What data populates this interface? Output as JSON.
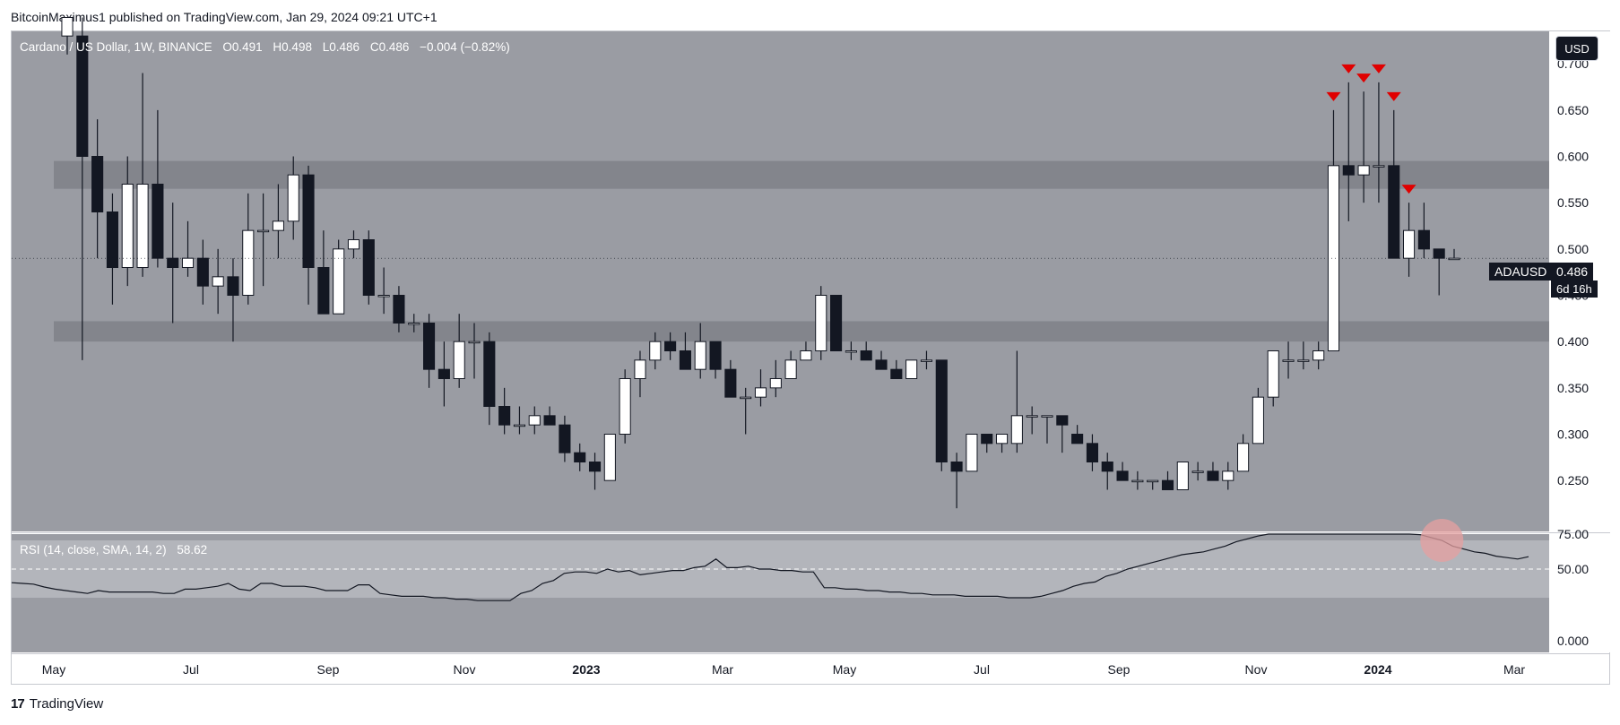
{
  "header": {
    "publisher_line": "BitcoinMaximus1 published on TradingView.com, Jan 29, 2024 09:21 UTC+1"
  },
  "legend": {
    "symbol": "Cardano / US Dollar, 1W, BINANCE",
    "open_label": "O",
    "open": "0.491",
    "high_label": "H",
    "high": "0.498",
    "low_label": "L",
    "low": "0.486",
    "close_label": "C",
    "close": "0.486",
    "change": "−0.004 (−0.82%)"
  },
  "rsi_legend": {
    "label": "RSI (14, close, SMA, 14, 2)",
    "value": "58.62"
  },
  "currency_button": "USD",
  "price_tag": {
    "symbol": "ADAUSD",
    "price": "0.486",
    "countdown": "6d 16h"
  },
  "footer_logo": {
    "mark": "17",
    "text": "TradingView"
  },
  "colors": {
    "pane_bg": "#9a9ca3",
    "rsi_bg": "#9a9ca3",
    "rsi_band": "#b3b5bb",
    "zone": "#7f8188",
    "bull": "#ffffff",
    "bear": "#131722",
    "marker": "#e00000",
    "highlight_circle": "#e5a0a0"
  },
  "chart_data": {
    "type": "candlestick",
    "title": "Cardano / US Dollar, 1W, BINANCE",
    "y_axis_ticks": [
      "0.700",
      "0.650",
      "0.600",
      "0.550",
      "0.500",
      "0.450",
      "0.400",
      "0.350",
      "0.300",
      "0.250"
    ],
    "x_axis_ticks": [
      "May",
      "Jul",
      "Sep",
      "Nov",
      "2023",
      "Mar",
      "May",
      "Jul",
      "Sep",
      "Nov",
      "2024",
      "Mar"
    ],
    "ylim": [
      0.195,
      0.735
    ],
    "zones": [
      [
        0.565,
        0.595
      ],
      [
        0.4,
        0.422
      ]
    ],
    "candles": [
      [
        0.73,
        0.75,
        0.71,
        0.75
      ],
      [
        0.73,
        0.75,
        0.38,
        0.6
      ],
      [
        0.6,
        0.64,
        0.49,
        0.54
      ],
      [
        0.54,
        0.56,
        0.44,
        0.48
      ],
      [
        0.48,
        0.6,
        0.46,
        0.57
      ],
      [
        0.48,
        0.69,
        0.47,
        0.57
      ],
      [
        0.57,
        0.65,
        0.48,
        0.49
      ],
      [
        0.49,
        0.55,
        0.42,
        0.48
      ],
      [
        0.48,
        0.53,
        0.47,
        0.49
      ],
      [
        0.49,
        0.51,
        0.44,
        0.46
      ],
      [
        0.46,
        0.5,
        0.43,
        0.47
      ],
      [
        0.47,
        0.49,
        0.4,
        0.45
      ],
      [
        0.45,
        0.56,
        0.44,
        0.52
      ],
      [
        0.52,
        0.56,
        0.46,
        0.52
      ],
      [
        0.52,
        0.57,
        0.49,
        0.53
      ],
      [
        0.53,
        0.6,
        0.51,
        0.58
      ],
      [
        0.58,
        0.59,
        0.44,
        0.48
      ],
      [
        0.48,
        0.52,
        0.43,
        0.43
      ],
      [
        0.43,
        0.51,
        0.43,
        0.5
      ],
      [
        0.5,
        0.52,
        0.49,
        0.51
      ],
      [
        0.51,
        0.52,
        0.44,
        0.45
      ],
      [
        0.45,
        0.48,
        0.43,
        0.45
      ],
      [
        0.45,
        0.46,
        0.41,
        0.42
      ],
      [
        0.42,
        0.43,
        0.41,
        0.42
      ],
      [
        0.42,
        0.43,
        0.35,
        0.37
      ],
      [
        0.37,
        0.4,
        0.33,
        0.36
      ],
      [
        0.36,
        0.43,
        0.35,
        0.4
      ],
      [
        0.4,
        0.42,
        0.36,
        0.4
      ],
      [
        0.4,
        0.41,
        0.31,
        0.33
      ],
      [
        0.33,
        0.35,
        0.3,
        0.31
      ],
      [
        0.31,
        0.33,
        0.3,
        0.31
      ],
      [
        0.31,
        0.33,
        0.3,
        0.32
      ],
      [
        0.32,
        0.33,
        0.31,
        0.31
      ],
      [
        0.31,
        0.32,
        0.27,
        0.28
      ],
      [
        0.28,
        0.29,
        0.26,
        0.27
      ],
      [
        0.27,
        0.28,
        0.24,
        0.26
      ],
      [
        0.25,
        0.3,
        0.25,
        0.3
      ],
      [
        0.3,
        0.37,
        0.29,
        0.36
      ],
      [
        0.36,
        0.39,
        0.34,
        0.38
      ],
      [
        0.38,
        0.41,
        0.37,
        0.4
      ],
      [
        0.4,
        0.41,
        0.38,
        0.39
      ],
      [
        0.39,
        0.41,
        0.37,
        0.37
      ],
      [
        0.37,
        0.42,
        0.36,
        0.4
      ],
      [
        0.4,
        0.4,
        0.36,
        0.37
      ],
      [
        0.37,
        0.38,
        0.34,
        0.34
      ],
      [
        0.34,
        0.35,
        0.3,
        0.34
      ],
      [
        0.34,
        0.37,
        0.33,
        0.35
      ],
      [
        0.35,
        0.38,
        0.34,
        0.36
      ],
      [
        0.36,
        0.39,
        0.36,
        0.38
      ],
      [
        0.38,
        0.4,
        0.38,
        0.39
      ],
      [
        0.39,
        0.46,
        0.38,
        0.45
      ],
      [
        0.45,
        0.45,
        0.39,
        0.39
      ],
      [
        0.39,
        0.4,
        0.38,
        0.39
      ],
      [
        0.39,
        0.4,
        0.38,
        0.38
      ],
      [
        0.38,
        0.39,
        0.37,
        0.37
      ],
      [
        0.37,
        0.38,
        0.36,
        0.36
      ],
      [
        0.36,
        0.38,
        0.36,
        0.38
      ],
      [
        0.38,
        0.39,
        0.37,
        0.38
      ],
      [
        0.38,
        0.38,
        0.26,
        0.27
      ],
      [
        0.27,
        0.28,
        0.22,
        0.26
      ],
      [
        0.26,
        0.3,
        0.26,
        0.3
      ],
      [
        0.3,
        0.3,
        0.28,
        0.29
      ],
      [
        0.29,
        0.3,
        0.28,
        0.3
      ],
      [
        0.29,
        0.39,
        0.28,
        0.32
      ],
      [
        0.32,
        0.33,
        0.3,
        0.32
      ],
      [
        0.32,
        0.32,
        0.29,
        0.32
      ],
      [
        0.32,
        0.32,
        0.28,
        0.31
      ],
      [
        0.3,
        0.31,
        0.29,
        0.29
      ],
      [
        0.29,
        0.3,
        0.26,
        0.27
      ],
      [
        0.27,
        0.28,
        0.24,
        0.26
      ],
      [
        0.26,
        0.27,
        0.25,
        0.25
      ],
      [
        0.25,
        0.26,
        0.24,
        0.25
      ],
      [
        0.25,
        0.25,
        0.24,
        0.25
      ],
      [
        0.25,
        0.26,
        0.24,
        0.24
      ],
      [
        0.24,
        0.27,
        0.24,
        0.27
      ],
      [
        0.26,
        0.27,
        0.25,
        0.26
      ],
      [
        0.26,
        0.27,
        0.25,
        0.25
      ],
      [
        0.25,
        0.27,
        0.24,
        0.26
      ],
      [
        0.26,
        0.3,
        0.26,
        0.29
      ],
      [
        0.29,
        0.35,
        0.29,
        0.34
      ],
      [
        0.34,
        0.39,
        0.33,
        0.39
      ],
      [
        0.38,
        0.4,
        0.36,
        0.38
      ],
      [
        0.38,
        0.4,
        0.37,
        0.38
      ],
      [
        0.38,
        0.4,
        0.37,
        0.39
      ],
      [
        0.39,
        0.65,
        0.39,
        0.59
      ],
      [
        0.59,
        0.68,
        0.53,
        0.58
      ],
      [
        0.58,
        0.67,
        0.55,
        0.59
      ],
      [
        0.59,
        0.68,
        0.55,
        0.59
      ],
      [
        0.59,
        0.65,
        0.49,
        0.49
      ],
      [
        0.49,
        0.55,
        0.47,
        0.52
      ],
      [
        0.52,
        0.55,
        0.49,
        0.5
      ],
      [
        0.5,
        0.5,
        0.45,
        0.49
      ],
      [
        0.49,
        0.5,
        0.49,
        0.49
      ]
    ],
    "markers_above_candles": [
      84,
      85,
      86,
      87,
      88,
      89
    ],
    "rsi": {
      "label": "RSI (14, close, SMA, 14, 2)",
      "last": 58.62,
      "ylim": [
        0,
        100
      ],
      "y_axis_ticks": [
        "75.00",
        "50.00",
        "0.000"
      ],
      "band": [
        30,
        70
      ],
      "midline": 50,
      "values": [
        40.5,
        40,
        39.5,
        37.5,
        36,
        35,
        34,
        33,
        35,
        34,
        34,
        34,
        34,
        34,
        33,
        33,
        36,
        36,
        37,
        38,
        40,
        36,
        35,
        40,
        40,
        38,
        38,
        38,
        37,
        35,
        35,
        35,
        39,
        39,
        33,
        32,
        31,
        31,
        31,
        30,
        30,
        29,
        29,
        28,
        28,
        28,
        28,
        33,
        35,
        40,
        42,
        47,
        48,
        48,
        47,
        50,
        48,
        49,
        46,
        47,
        48,
        49,
        49,
        51,
        52,
        57,
        51,
        51,
        52,
        50,
        50,
        49,
        49,
        48,
        48,
        37,
        37,
        36,
        36,
        35,
        35,
        34,
        34,
        33,
        33,
        32,
        32,
        32,
        31,
        31,
        31,
        31,
        30,
        30,
        30,
        31,
        33,
        35,
        38,
        40,
        41,
        45,
        47,
        50,
        52,
        54,
        56,
        58,
        60,
        61,
        62,
        64,
        66,
        69,
        71,
        73,
        75,
        77,
        79,
        80,
        81,
        83,
        84,
        85,
        84,
        83,
        82,
        80,
        78,
        76,
        74,
        72,
        70,
        66,
        64,
        62,
        61,
        59,
        58,
        57,
        58.62
      ]
    }
  }
}
